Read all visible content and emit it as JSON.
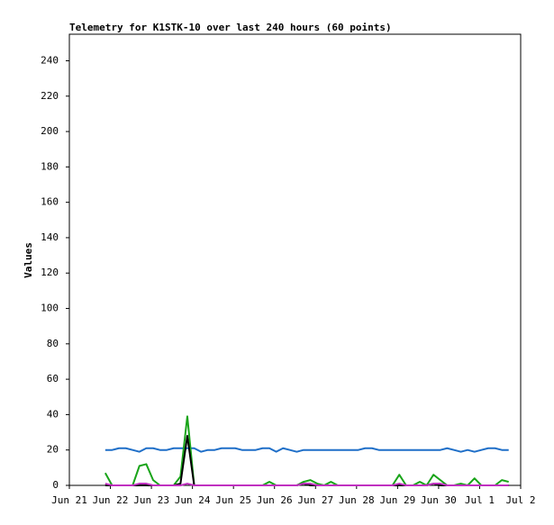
{
  "chart_data": {
    "type": "line",
    "title": "Telemetry for K1STK-10 over last 240 hours (60 points)",
    "y_label": "Values",
    "xlim": [
      0,
      11
    ],
    "xticks": [
      {
        "value": 0,
        "label": "Jun 21"
      },
      {
        "value": 1,
        "label": "Jun 22"
      },
      {
        "value": 2,
        "label": "Jun 23"
      },
      {
        "value": 3,
        "label": "Jun 24"
      },
      {
        "value": 4,
        "label": "Jun 25"
      },
      {
        "value": 5,
        "label": "Jun 26"
      },
      {
        "value": 6,
        "label": "Jun 27"
      },
      {
        "value": 7,
        "label": "Jun 28"
      },
      {
        "value": 8,
        "label": "Jun 29"
      },
      {
        "value": 9,
        "label": "Jun 30"
      },
      {
        "value": 10,
        "label": "Jul 1"
      },
      {
        "value": 11,
        "label": "Jul 2"
      }
    ],
    "ylim": [
      0,
      255
    ],
    "yticks": [
      0,
      20,
      40,
      60,
      80,
      100,
      120,
      140,
      160,
      180,
      200,
      220,
      240
    ],
    "x": [
      0.875,
      1.042,
      1.208,
      1.375,
      1.542,
      1.708,
      1.875,
      2.042,
      2.208,
      2.375,
      2.542,
      2.708,
      2.875,
      3.042,
      3.208,
      3.375,
      3.542,
      3.708,
      3.875,
      4.042,
      4.208,
      4.375,
      4.542,
      4.708,
      4.875,
      5.042,
      5.208,
      5.375,
      5.542,
      5.708,
      5.875,
      6.042,
      6.208,
      6.375,
      6.542,
      6.708,
      6.875,
      7.042,
      7.208,
      7.375,
      7.542,
      7.708,
      7.875,
      8.042,
      8.208,
      8.375,
      8.542,
      8.708,
      8.875,
      9.042,
      9.208,
      9.375,
      9.542,
      9.708,
      9.875,
      10.042,
      10.208,
      10.375,
      10.542,
      10.708
    ],
    "series": [
      {
        "color": "#1f6fc8",
        "values": [
          20,
          20,
          21,
          21,
          20,
          19,
          21,
          21,
          20,
          20,
          21,
          21,
          21,
          21,
          19,
          20,
          20,
          21,
          21,
          21,
          20,
          20,
          20,
          21,
          21,
          19,
          21,
          20,
          19,
          20,
          20,
          20,
          20,
          20,
          20,
          20,
          20,
          20,
          21,
          21,
          20,
          20,
          20,
          20,
          20,
          20,
          20,
          20,
          20,
          20,
          21,
          20,
          19,
          20,
          19,
          20,
          21,
          21,
          20,
          20
        ]
      },
      {
        "color": "#19a419",
        "values": [
          7,
          0,
          0,
          0,
          0,
          11,
          12,
          3,
          0,
          0,
          0,
          5,
          39,
          0,
          0,
          0,
          0,
          0,
          0,
          0,
          0,
          0,
          0,
          0,
          2,
          0,
          0,
          0,
          0,
          2,
          3,
          1,
          0,
          2,
          0,
          0,
          0,
          0,
          0,
          0,
          0,
          0,
          0,
          6,
          0,
          0,
          2,
          0,
          6,
          3,
          0,
          0,
          1,
          0,
          4,
          0,
          0,
          0,
          3,
          2
        ]
      },
      {
        "color": "#000000",
        "values": [
          0,
          0,
          0,
          0,
          0,
          0,
          0,
          0,
          0,
          0,
          0,
          1,
          28,
          0,
          0,
          0,
          0,
          0,
          0,
          0,
          0,
          0,
          0,
          0,
          0,
          0,
          0,
          0,
          0,
          1,
          0,
          0,
          0,
          0,
          0,
          0,
          0,
          0,
          0,
          0,
          0,
          0,
          0,
          0,
          0,
          0,
          0,
          0,
          1,
          0,
          0,
          0,
          0,
          0,
          0,
          0,
          0,
          0,
          0,
          0
        ]
      },
      {
        "color": "#c030c0",
        "values": [
          1,
          0,
          0,
          0,
          0,
          1,
          1,
          0,
          0,
          0,
          0,
          0,
          1,
          0,
          0,
          0,
          0,
          0,
          0,
          0,
          0,
          0,
          0,
          0,
          0,
          0,
          0,
          0,
          0,
          1,
          1,
          0,
          0,
          0,
          0,
          0,
          0,
          0,
          0,
          0,
          0,
          0,
          0,
          1,
          0,
          0,
          0,
          0,
          1,
          1,
          0,
          0,
          0,
          0,
          0,
          0,
          0,
          0,
          0,
          0
        ]
      }
    ]
  }
}
